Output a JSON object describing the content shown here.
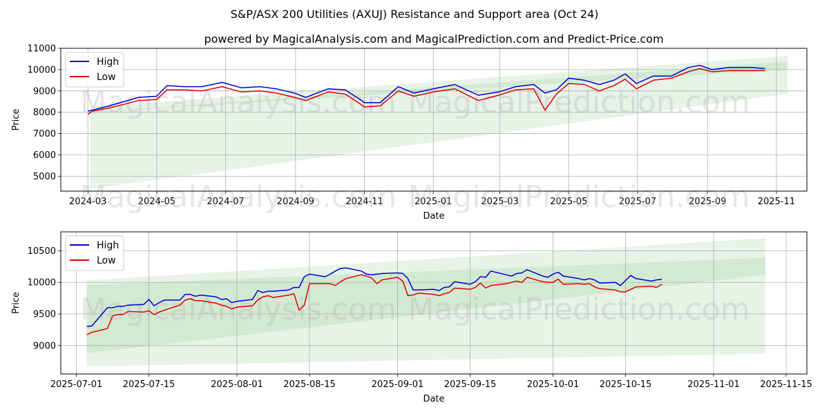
{
  "title": "S&P/ASX 200 Utilities (AXUJ) Resistance and Support area (Oct 24)",
  "subtitle": "powered by MagicalAnalysis.com and MagicalPrediction.com and Predict-Price.com",
  "watermarks": [
    "MagicalAnalysis.com",
    "MagicalPrediction.com"
  ],
  "colors": {
    "high": "#0000cc",
    "low": "#e00000",
    "band_light": "#e4f2e4",
    "band_dark": "#cbe6cb",
    "grid": "#b0b0b0"
  },
  "chart_data": [
    {
      "type": "line",
      "xlabel": "Date",
      "ylabel": "Price",
      "grid": true,
      "legend": "top-left",
      "xlim": [
        "2024-02-06",
        "2025-11-28"
      ],
      "ylim": [
        4300,
        11000
      ],
      "x_ticks": [
        "2024-03-01",
        "2024-05-01",
        "2024-07-01",
        "2024-09-01",
        "2024-11-01",
        "2025-01-01",
        "2025-03-01",
        "2025-05-01",
        "2025-07-01",
        "2025-09-01",
        "2025-11-01"
      ],
      "x_tick_labels": [
        "2024-03",
        "2024-05",
        "2024-07",
        "2024-09",
        "2024-11",
        "2025-01",
        "2025-03",
        "2025-05",
        "2025-07",
        "2025-09",
        "2025-11"
      ],
      "y_ticks": [
        5000,
        6000,
        7000,
        8000,
        9000,
        10000,
        11000
      ],
      "y_tick_labels": [
        "5000",
        "6000",
        "7000",
        "8000",
        "9000",
        "10000",
        "11000"
      ],
      "bands": [
        {
          "name": "outer",
          "x": [
            "2024-03-03",
            "2025-11-11"
          ],
          "upper": [
            8250,
            10650
          ],
          "lower": [
            4400,
            8870
          ]
        },
        {
          "name": "inner",
          "x": [
            "2024-03-03",
            "2025-11-11"
          ],
          "upper": [
            8000,
            10380
          ],
          "lower": [
            7990,
            10010
          ]
        }
      ],
      "series": [
        {
          "name": "High",
          "x": [
            "2024-03-01",
            "2024-03-05",
            "2024-03-20",
            "2024-04-15",
            "2024-05-01",
            "2024-05-10",
            "2024-05-25",
            "2024-06-10",
            "2024-06-28",
            "2024-07-15",
            "2024-07-31",
            "2024-08-15",
            "2024-08-31",
            "2024-09-10",
            "2024-09-30",
            "2024-10-15",
            "2024-10-28",
            "2024-11-01",
            "2024-11-15",
            "2024-12-01",
            "2024-12-15",
            "2025-01-01",
            "2025-01-20",
            "2025-02-10",
            "2025-02-28",
            "2025-03-15",
            "2025-03-31",
            "2025-04-10",
            "2025-04-20",
            "2025-05-01",
            "2025-05-15",
            "2025-05-28",
            "2025-06-10",
            "2025-06-20",
            "2025-06-30",
            "2025-07-15",
            "2025-07-31",
            "2025-08-15",
            "2025-08-25",
            "2025-09-05",
            "2025-09-20",
            "2025-10-10",
            "2025-10-22"
          ],
          "values": [
            8050,
            8100,
            8300,
            8700,
            8750,
            9250,
            9200,
            9200,
            9400,
            9150,
            9200,
            9100,
            8900,
            8700,
            9100,
            9050,
            8600,
            8450,
            8450,
            9200,
            8900,
            9100,
            9300,
            8800,
            8950,
            9200,
            9300,
            8900,
            9050,
            9600,
            9500,
            9300,
            9500,
            9800,
            9350,
            9700,
            9700,
            10100,
            10200,
            10000,
            10100,
            10100,
            10050
          ]
        },
        {
          "name": "Low",
          "x": [
            "2024-03-01",
            "2024-03-05",
            "2024-03-20",
            "2024-04-15",
            "2024-05-01",
            "2024-05-10",
            "2024-05-25",
            "2024-06-10",
            "2024-06-28",
            "2024-07-15",
            "2024-07-31",
            "2024-08-15",
            "2024-08-31",
            "2024-09-10",
            "2024-09-30",
            "2024-10-15",
            "2024-10-28",
            "2024-11-01",
            "2024-11-15",
            "2024-12-01",
            "2024-12-15",
            "2025-01-01",
            "2025-01-20",
            "2025-02-10",
            "2025-02-28",
            "2025-03-15",
            "2025-03-31",
            "2025-04-10",
            "2025-04-20",
            "2025-05-01",
            "2025-05-15",
            "2025-05-28",
            "2025-06-10",
            "2025-06-20",
            "2025-06-30",
            "2025-07-15",
            "2025-07-31",
            "2025-08-15",
            "2025-08-25",
            "2025-09-05",
            "2025-09-20",
            "2025-10-10",
            "2025-10-22"
          ],
          "values": [
            7900,
            8050,
            8200,
            8550,
            8600,
            9050,
            9050,
            9000,
            9200,
            8950,
            9000,
            8900,
            8700,
            8550,
            8950,
            8850,
            8400,
            8250,
            8300,
            9000,
            8750,
            8950,
            9100,
            8550,
            8800,
            9050,
            9100,
            8100,
            8850,
            9350,
            9300,
            9000,
            9250,
            9550,
            9100,
            9500,
            9600,
            9900,
            10050,
            9900,
            9950,
            9950,
            9950
          ]
        }
      ]
    },
    {
      "type": "line",
      "xlabel": "Date",
      "ylabel": "Price",
      "grid": true,
      "legend": "top-left",
      "xlim": [
        "2025-06-28",
        "2025-11-19"
      ],
      "ylim": [
        8550,
        10800
      ],
      "x_ticks": [
        "2025-07-01",
        "2025-07-15",
        "2025-08-01",
        "2025-08-15",
        "2025-09-01",
        "2025-09-15",
        "2025-10-01",
        "2025-10-15",
        "2025-11-01",
        "2025-11-15"
      ],
      "x_tick_labels": [
        "2025-07-01",
        "2025-07-15",
        "2025-08-01",
        "2025-08-15",
        "2025-09-01",
        "2025-09-15",
        "2025-10-01",
        "2025-10-15",
        "2025-11-01",
        "2025-11-15"
      ],
      "y_ticks": [
        9000,
        9500,
        10000,
        10500
      ],
      "y_tick_labels": [
        "9000",
        "9500",
        "10000",
        "10500"
      ],
      "bands": [
        {
          "name": "outer",
          "x": [
            "2025-07-03",
            "2025-11-11"
          ],
          "upper": [
            10030,
            10700
          ],
          "lower": [
            8670,
            8870
          ]
        },
        {
          "name": "inner",
          "x": [
            "2025-07-03",
            "2025-11-11"
          ],
          "upper": [
            9960,
            10390
          ],
          "lower": [
            8880,
            10120
          ]
        }
      ],
      "series": [
        {
          "name": "High",
          "x": [
            "2025-07-03",
            "2025-07-04",
            "2025-07-07",
            "2025-07-08",
            "2025-07-09",
            "2025-07-10",
            "2025-07-11",
            "2025-07-14",
            "2025-07-15",
            "2025-07-16",
            "2025-07-17",
            "2025-07-18",
            "2025-07-21",
            "2025-07-22",
            "2025-07-23",
            "2025-07-24",
            "2025-07-25",
            "2025-07-28",
            "2025-07-29",
            "2025-07-30",
            "2025-07-31",
            "2025-08-01",
            "2025-08-04",
            "2025-08-05",
            "2025-08-06",
            "2025-08-07",
            "2025-08-08",
            "2025-08-11",
            "2025-08-12",
            "2025-08-13",
            "2025-08-14",
            "2025-08-15",
            "2025-08-18",
            "2025-08-19",
            "2025-08-20",
            "2025-08-21",
            "2025-08-22",
            "2025-08-25",
            "2025-08-26",
            "2025-08-27",
            "2025-08-28",
            "2025-08-29",
            "2025-09-01",
            "2025-09-02",
            "2025-09-03",
            "2025-09-04",
            "2025-09-05",
            "2025-09-08",
            "2025-09-09",
            "2025-09-10",
            "2025-09-11",
            "2025-09-12",
            "2025-09-15",
            "2025-09-16",
            "2025-09-17",
            "2025-09-18",
            "2025-09-19",
            "2025-09-22",
            "2025-09-23",
            "2025-09-24",
            "2025-09-25",
            "2025-09-26",
            "2025-09-29",
            "2025-09-30",
            "2025-10-01",
            "2025-10-02",
            "2025-10-03",
            "2025-10-06",
            "2025-10-07",
            "2025-10-08",
            "2025-10-09",
            "2025-10-10",
            "2025-10-13",
            "2025-10-14",
            "2025-10-15",
            "2025-10-16",
            "2025-10-17",
            "2025-10-20",
            "2025-10-21",
            "2025-10-22"
          ],
          "values": [
            9300,
            9310,
            9600,
            9600,
            9620,
            9620,
            9640,
            9650,
            9730,
            9630,
            9680,
            9720,
            9720,
            9810,
            9810,
            9780,
            9800,
            9770,
            9730,
            9740,
            9680,
            9700,
            9730,
            9870,
            9840,
            9860,
            9860,
            9880,
            9920,
            9920,
            10090,
            10130,
            10090,
            10130,
            10180,
            10220,
            10230,
            10180,
            10130,
            10120,
            10130,
            10140,
            10150,
            10140,
            10060,
            9880,
            9880,
            9890,
            9870,
            9920,
            9930,
            10010,
            9970,
            10010,
            10090,
            10080,
            10180,
            10120,
            10100,
            10140,
            10150,
            10200,
            10100,
            10080,
            10130,
            10160,
            10100,
            10060,
            10040,
            10060,
            10040,
            9990,
            10000,
            9950,
            10030,
            10110,
            10060,
            10020,
            10040,
            10050
          ]
        },
        {
          "name": "Low",
          "x": [
            "2025-07-03",
            "2025-07-04",
            "2025-07-07",
            "2025-07-08",
            "2025-07-09",
            "2025-07-10",
            "2025-07-11",
            "2025-07-14",
            "2025-07-15",
            "2025-07-16",
            "2025-07-17",
            "2025-07-18",
            "2025-07-21",
            "2025-07-22",
            "2025-07-23",
            "2025-07-24",
            "2025-07-25",
            "2025-07-28",
            "2025-07-29",
            "2025-07-30",
            "2025-07-31",
            "2025-08-01",
            "2025-08-04",
            "2025-08-05",
            "2025-08-06",
            "2025-08-07",
            "2025-08-08",
            "2025-08-11",
            "2025-08-12",
            "2025-08-13",
            "2025-08-14",
            "2025-08-15",
            "2025-08-18",
            "2025-08-19",
            "2025-08-20",
            "2025-08-21",
            "2025-08-22",
            "2025-08-25",
            "2025-08-26",
            "2025-08-27",
            "2025-08-28",
            "2025-08-29",
            "2025-09-01",
            "2025-09-02",
            "2025-09-03",
            "2025-09-04",
            "2025-09-05",
            "2025-09-08",
            "2025-09-09",
            "2025-09-10",
            "2025-09-11",
            "2025-09-12",
            "2025-09-15",
            "2025-09-16",
            "2025-09-17",
            "2025-09-18",
            "2025-09-19",
            "2025-09-22",
            "2025-09-23",
            "2025-09-24",
            "2025-09-25",
            "2025-09-26",
            "2025-09-29",
            "2025-09-30",
            "2025-10-01",
            "2025-10-02",
            "2025-10-03",
            "2025-10-06",
            "2025-10-07",
            "2025-10-08",
            "2025-10-09",
            "2025-10-10",
            "2025-10-13",
            "2025-10-14",
            "2025-10-15",
            "2025-10-16",
            "2025-10-17",
            "2025-10-20",
            "2025-10-21",
            "2025-10-22"
          ],
          "values": [
            9170,
            9210,
            9270,
            9470,
            9490,
            9490,
            9540,
            9530,
            9550,
            9490,
            9530,
            9560,
            9640,
            9720,
            9740,
            9710,
            9710,
            9670,
            9640,
            9620,
            9580,
            9610,
            9630,
            9720,
            9770,
            9790,
            9760,
            9800,
            9820,
            9560,
            9640,
            9980,
            9980,
            9980,
            9950,
            10010,
            10060,
            10120,
            10100,
            10070,
            9980,
            10040,
            10080,
            10020,
            9790,
            9800,
            9830,
            9810,
            9790,
            9820,
            9840,
            9910,
            9890,
            9920,
            9990,
            9910,
            9950,
            9980,
            10000,
            10020,
            10000,
            10080,
            10010,
            10000,
            10000,
            10050,
            9970,
            9980,
            9970,
            9980,
            9930,
            9900,
            9880,
            9850,
            9850,
            9890,
            9930,
            9940,
            9920,
            9970
          ]
        }
      ]
    }
  ]
}
